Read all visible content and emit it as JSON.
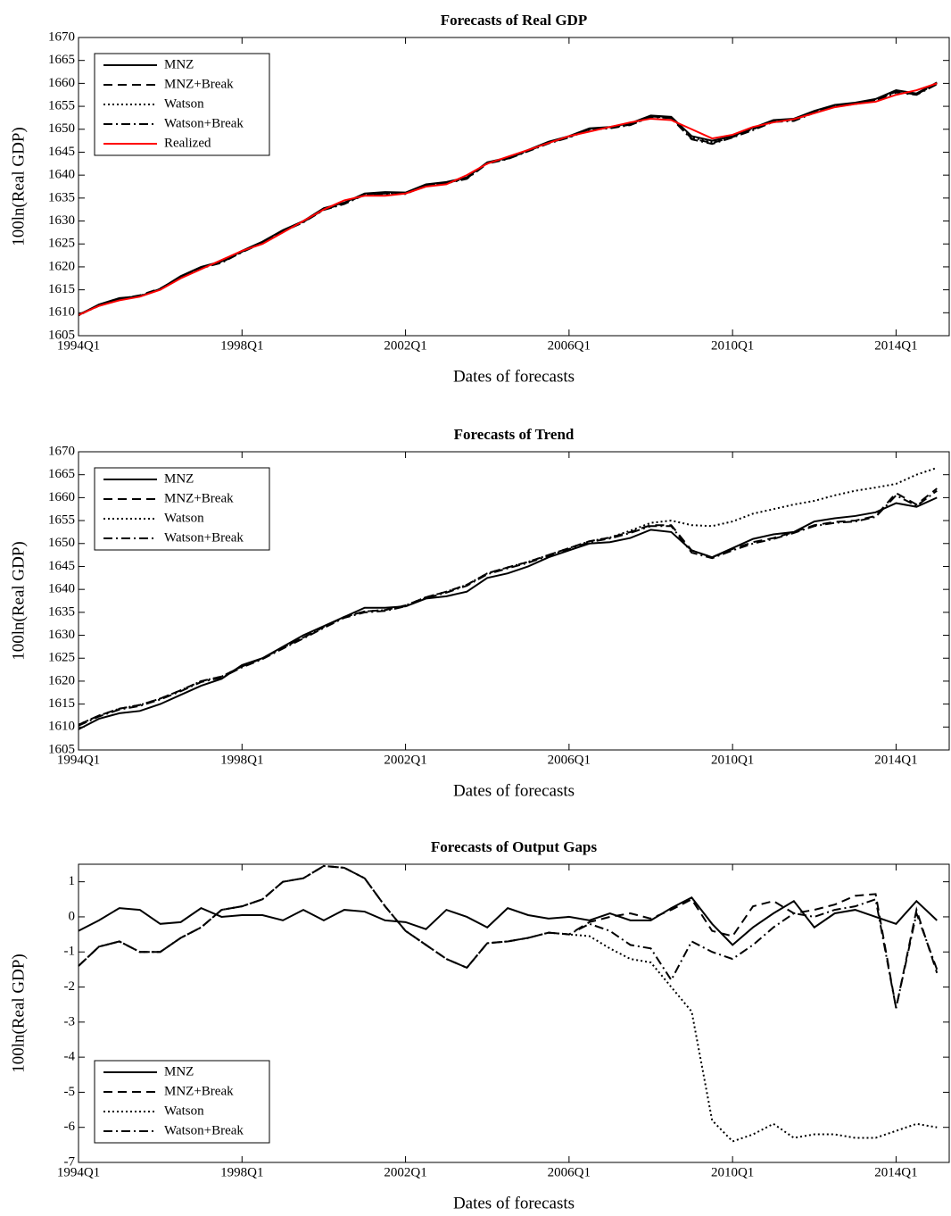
{
  "chart_data": [
    {
      "type": "line",
      "title": "Forecasts of Real GDP",
      "xlabel": "Dates of forecasts",
      "ylabel": "100ln(Real GDP)",
      "legend": "upper left",
      "grid": false,
      "x": [
        1994,
        1994.5,
        1995,
        1995.5,
        1996,
        1996.5,
        1997,
        1997.5,
        1998,
        1998.5,
        1999,
        1999.5,
        2000,
        2000.5,
        2001,
        2001.5,
        2002,
        2002.5,
        2003,
        2003.5,
        2004,
        2004.5,
        2005,
        2005.5,
        2006,
        2006.5,
        2007,
        2007.5,
        2008,
        2008.5,
        2009,
        2009.5,
        2010,
        2010.5,
        2011,
        2011.5,
        2012,
        2012.5,
        2013,
        2013.5,
        2014,
        2014.5,
        2015
      ],
      "xlim": [
        1994,
        2015.3
      ],
      "xticks": [
        {
          "value": 1994,
          "label": "1994Q1"
        },
        {
          "value": 1998,
          "label": "1998Q1"
        },
        {
          "value": 2002,
          "label": "2002Q1"
        },
        {
          "value": 2006,
          "label": "2006Q1"
        },
        {
          "value": 2010,
          "label": "2010Q1"
        },
        {
          "value": 2014,
          "label": "2014Q1"
        }
      ],
      "ylim": [
        1605,
        1670
      ],
      "yticks": [
        1605,
        1610,
        1615,
        1620,
        1625,
        1630,
        1635,
        1640,
        1645,
        1650,
        1655,
        1660,
        1665,
        1670
      ],
      "series": [
        {
          "name": "MNZ",
          "color": "#000000",
          "dash": "solid",
          "values": [
            1609.5,
            1611.8,
            1613.2,
            1613.6,
            1615.2,
            1618,
            1620,
            1621.2,
            1623.5,
            1625.5,
            1628,
            1630,
            1632.8,
            1634,
            1636,
            1636.3,
            1636.2,
            1638,
            1638.5,
            1639.5,
            1642.8,
            1643.8,
            1645.5,
            1647.3,
            1648.5,
            1650.2,
            1650.5,
            1651.3,
            1653,
            1652.7,
            1648.5,
            1647.5,
            1648.5,
            1650.3,
            1652,
            1652.3,
            1654,
            1655.3,
            1655.8,
            1656.6,
            1658.5,
            1657.8,
            1660.2
          ]
        },
        {
          "name": "MNZ+Break",
          "color": "#000000",
          "dash": "dashed",
          "values": [
            1609.6,
            1611.6,
            1613,
            1613.8,
            1615.3,
            1617.8,
            1619.8,
            1621,
            1623.3,
            1625.3,
            1627.8,
            1629.8,
            1632.5,
            1633.8,
            1635.8,
            1636,
            1636,
            1637.8,
            1638.3,
            1639.3,
            1642.6,
            1643.6,
            1645.3,
            1647,
            1648.3,
            1650,
            1650.3,
            1651,
            1652.8,
            1652.5,
            1648,
            1647,
            1648.3,
            1650,
            1651.8,
            1652,
            1653.8,
            1655,
            1655.6,
            1656.3,
            1658.2,
            1657.6,
            1660
          ]
        },
        {
          "name": "Watson",
          "color": "#000000",
          "dash": "dotted",
          "values": [
            1609.4,
            1611.7,
            1613.1,
            1613.7,
            1615.1,
            1617.9,
            1619.9,
            1621.1,
            1623.4,
            1625.4,
            1627.9,
            1629.9,
            1632.6,
            1633.9,
            1635.9,
            1636.1,
            1636.1,
            1637.9,
            1638.4,
            1639.4,
            1642.7,
            1643.7,
            1645.4,
            1647.1,
            1648.4,
            1650.1,
            1650.4,
            1651.1,
            1652.9,
            1652.6,
            1648.2,
            1647.2,
            1648.4,
            1650.1,
            1651.9,
            1652.1,
            1653.9,
            1655.1,
            1655.7,
            1656.4,
            1658.3,
            1657.7,
            1660.1
          ]
        },
        {
          "name": "Watson+Break",
          "color": "#000000",
          "dash": "dashdot",
          "values": [
            1609.5,
            1611.5,
            1612.9,
            1613.7,
            1615.2,
            1617.7,
            1619.7,
            1620.9,
            1623.2,
            1625.2,
            1627.7,
            1629.7,
            1632.4,
            1633.7,
            1635.7,
            1635.9,
            1635.9,
            1637.7,
            1638.2,
            1639.2,
            1642.5,
            1643.5,
            1645.2,
            1646.9,
            1648.2,
            1649.9,
            1650.2,
            1650.9,
            1652.7,
            1652.4,
            1647.8,
            1646.8,
            1648.2,
            1649.8,
            1651.6,
            1651.8,
            1653.6,
            1654.9,
            1655.5,
            1656.2,
            1658,
            1657.5,
            1659.8
          ]
        },
        {
          "name": "Realized",
          "color": "#ff0000",
          "dash": "solid",
          "values": [
            1609.5,
            1611.5,
            1612.7,
            1613.5,
            1615,
            1617.5,
            1619.5,
            1621.5,
            1623.5,
            1625,
            1627.5,
            1630,
            1632.5,
            1634.5,
            1635.5,
            1635.5,
            1636,
            1637.5,
            1638,
            1640,
            1642.5,
            1644,
            1645.5,
            1647,
            1648.5,
            1649.5,
            1650.5,
            1651.5,
            1652.3,
            1652,
            1650,
            1648,
            1648.8,
            1650.5,
            1651.5,
            1652.2,
            1653.5,
            1654.8,
            1655.5,
            1656,
            1657.5,
            1658.5,
            1660
          ]
        }
      ]
    },
    {
      "type": "line",
      "title": "Forecasts of Trend",
      "xlabel": "Dates of forecasts",
      "ylabel": "100ln(Real GDP)",
      "legend": "upper left",
      "grid": false,
      "x": [
        1994,
        1994.5,
        1995,
        1995.5,
        1996,
        1996.5,
        1997,
        1997.5,
        1998,
        1998.5,
        1999,
        1999.5,
        2000,
        2000.5,
        2001,
        2001.5,
        2002,
        2002.5,
        2003,
        2003.5,
        2004,
        2004.5,
        2005,
        2005.5,
        2006,
        2006.5,
        2007,
        2007.5,
        2008,
        2008.5,
        2009,
        2009.5,
        2010,
        2010.5,
        2011,
        2011.5,
        2012,
        2012.5,
        2013,
        2013.5,
        2014,
        2014.5,
        2015
      ],
      "xlim": [
        1994,
        2015.3
      ],
      "xticks": [
        {
          "value": 1994,
          "label": "1994Q1"
        },
        {
          "value": 1998,
          "label": "1998Q1"
        },
        {
          "value": 2002,
          "label": "2002Q1"
        },
        {
          "value": 2006,
          "label": "2006Q1"
        },
        {
          "value": 2010,
          "label": "2010Q1"
        },
        {
          "value": 2014,
          "label": "2014Q1"
        }
      ],
      "ylim": [
        1605,
        1670
      ],
      "yticks": [
        1605,
        1610,
        1615,
        1620,
        1625,
        1630,
        1635,
        1640,
        1645,
        1650,
        1655,
        1660,
        1665,
        1670
      ],
      "series": [
        {
          "name": "MNZ",
          "color": "#000000",
          "dash": "solid",
          "values": [
            1609.5,
            1611.8,
            1613,
            1613.5,
            1615,
            1617,
            1619,
            1620.5,
            1623.5,
            1625,
            1627.5,
            1630,
            1632,
            1634,
            1636,
            1636,
            1636.3,
            1638,
            1638.5,
            1639.5,
            1642.5,
            1643.5,
            1645,
            1647,
            1648.5,
            1650,
            1650.3,
            1651.2,
            1653,
            1652.5,
            1648.5,
            1647,
            1649,
            1651,
            1652,
            1652.5,
            1654.8,
            1655.5,
            1656,
            1656.8,
            1658.8,
            1658,
            1660
          ]
        },
        {
          "name": "MNZ+Break",
          "color": "#000000",
          "dash": "dashed",
          "values": [
            1610.5,
            1612.5,
            1614,
            1614.8,
            1616.2,
            1618,
            1620,
            1621,
            1623.2,
            1625,
            1627.3,
            1629.5,
            1631.8,
            1634,
            1635.2,
            1635.5,
            1636.5,
            1638.3,
            1639.5,
            1641,
            1643.5,
            1644.8,
            1646,
            1647.5,
            1649,
            1650.5,
            1651.3,
            1652.5,
            1654,
            1654,
            1648.5,
            1647,
            1648.8,
            1650.3,
            1651.2,
            1652.5,
            1654,
            1654.7,
            1655,
            1656,
            1661,
            1658.5,
            1662
          ]
        },
        {
          "name": "Watson",
          "color": "#000000",
          "dash": "dotted",
          "values": [
            1610.5,
            1612.5,
            1614,
            1614.8,
            1616.2,
            1618,
            1620,
            1621,
            1623.2,
            1625,
            1627.3,
            1629.5,
            1631.8,
            1634,
            1635.2,
            1635.5,
            1636.5,
            1638.3,
            1639.5,
            1641,
            1643.5,
            1644.8,
            1646,
            1647.5,
            1649,
            1650.5,
            1651.3,
            1652.8,
            1654.5,
            1655,
            1654,
            1653.8,
            1654.8,
            1656.5,
            1657.5,
            1658.5,
            1659.3,
            1660.5,
            1661.5,
            1662.2,
            1663,
            1665,
            1666.5
          ]
        },
        {
          "name": "Watson+Break",
          "color": "#000000",
          "dash": "dashdot",
          "values": [
            1610.3,
            1612.3,
            1613.8,
            1614.6,
            1616,
            1617.8,
            1619.8,
            1620.8,
            1623,
            1624.8,
            1627.1,
            1629.3,
            1631.6,
            1633.8,
            1635,
            1635.3,
            1636.3,
            1638.1,
            1639.3,
            1640.8,
            1643.3,
            1644.6,
            1645.8,
            1647.3,
            1648.8,
            1650.3,
            1651.1,
            1652.3,
            1653.8,
            1653.8,
            1648,
            1646.8,
            1648.5,
            1650,
            1651,
            1652.3,
            1653.8,
            1654.5,
            1654.8,
            1655.8,
            1660.5,
            1658.2,
            1661.5
          ]
        }
      ]
    },
    {
      "type": "line",
      "title": "Forecasts of Output Gaps",
      "xlabel": "Dates of forecasts",
      "ylabel": "100ln(Real GDP)",
      "legend": "lower left",
      "grid": false,
      "x": [
        1994,
        1994.5,
        1995,
        1995.5,
        1996,
        1996.5,
        1997,
        1997.5,
        1998,
        1998.5,
        1999,
        1999.5,
        2000,
        2000.5,
        2001,
        2001.5,
        2002,
        2002.5,
        2003,
        2003.5,
        2004,
        2004.5,
        2005,
        2005.5,
        2006,
        2006.5,
        2007,
        2007.5,
        2008,
        2008.5,
        2009,
        2009.5,
        2010,
        2010.5,
        2011,
        2011.5,
        2012,
        2012.5,
        2013,
        2013.5,
        2014,
        2014.5,
        2015
      ],
      "xlim": [
        1994,
        2015.3
      ],
      "xticks": [
        {
          "value": 1994,
          "label": "1994Q1"
        },
        {
          "value": 1998,
          "label": "1998Q1"
        },
        {
          "value": 2002,
          "label": "2002Q1"
        },
        {
          "value": 2006,
          "label": "2006Q1"
        },
        {
          "value": 2010,
          "label": "2010Q1"
        },
        {
          "value": 2014,
          "label": "2014Q1"
        }
      ],
      "ylim": [
        -7,
        1.5
      ],
      "yticks": [
        -7,
        -6,
        -5,
        -4,
        -3,
        -2,
        -1,
        0,
        1
      ],
      "series": [
        {
          "name": "MNZ",
          "color": "#000000",
          "dash": "solid",
          "values": [
            -0.4,
            -0.1,
            0.25,
            0.2,
            -0.2,
            -0.15,
            0.25,
            0,
            0.05,
            0.05,
            -0.1,
            0.2,
            -0.1,
            0.2,
            0.15,
            -0.1,
            -0.15,
            -0.35,
            0.2,
            0,
            -0.3,
            0.25,
            0.05,
            -0.05,
            0,
            -0.1,
            0.1,
            -0.1,
            -0.1,
            0.25,
            0.55,
            -0.2,
            -0.8,
            -0.3,
            0.1,
            0.45,
            -0.3,
            0.1,
            0.2,
            0,
            -0.2,
            0.45,
            -0.1
          ]
        },
        {
          "name": "MNZ+Break",
          "color": "#000000",
          "dash": "dashed",
          "values": [
            -1.4,
            -0.85,
            -0.7,
            -1,
            -1,
            -0.6,
            -0.3,
            0.2,
            0.3,
            0.5,
            1,
            1.1,
            1.45,
            1.4,
            1.1,
            0.3,
            -0.4,
            -0.8,
            -1.2,
            -1.45,
            -0.75,
            -0.7,
            -0.6,
            -0.45,
            -0.5,
            -0.15,
            0,
            0.1,
            -0.05,
            0.2,
            0.5,
            -0.4,
            -0.55,
            0.3,
            0.45,
            0.1,
            0.2,
            0.35,
            0.6,
            0.65,
            -2.6,
            0.2,
            -1.6
          ]
        },
        {
          "name": "Watson",
          "color": "#000000",
          "dash": "dotted",
          "values": [
            -1.4,
            -0.85,
            -0.7,
            -1,
            -1,
            -0.6,
            -0.3,
            0.2,
            0.3,
            0.5,
            1,
            1.1,
            1.45,
            1.4,
            1.1,
            0.3,
            -0.4,
            -0.8,
            -1.2,
            -1.45,
            -0.75,
            -0.7,
            -0.6,
            -0.45,
            -0.5,
            -0.55,
            -0.9,
            -1.2,
            -1.3,
            -2,
            -2.7,
            -5.8,
            -6.4,
            -6.2,
            -5.9,
            -6.3,
            -6.2,
            -6.2,
            -6.3,
            -6.3,
            -6.1,
            -5.9,
            -6
          ]
        },
        {
          "name": "Watson+Break",
          "color": "#000000",
          "dash": "dashdot",
          "values": [
            -1.4,
            -0.85,
            -0.7,
            -1,
            -1,
            -0.6,
            -0.3,
            0.2,
            0.3,
            0.5,
            1,
            1.1,
            1.45,
            1.4,
            1.1,
            0.3,
            -0.4,
            -0.8,
            -1.2,
            -1.45,
            -0.75,
            -0.7,
            -0.6,
            -0.45,
            -0.5,
            -0.2,
            -0.4,
            -0.8,
            -0.9,
            -1.8,
            -0.7,
            -1,
            -1.2,
            -0.8,
            -0.3,
            0.1,
            0,
            0.2,
            0.3,
            0.5,
            -2.6,
            0.1,
            -1.5
          ]
        }
      ]
    }
  ]
}
